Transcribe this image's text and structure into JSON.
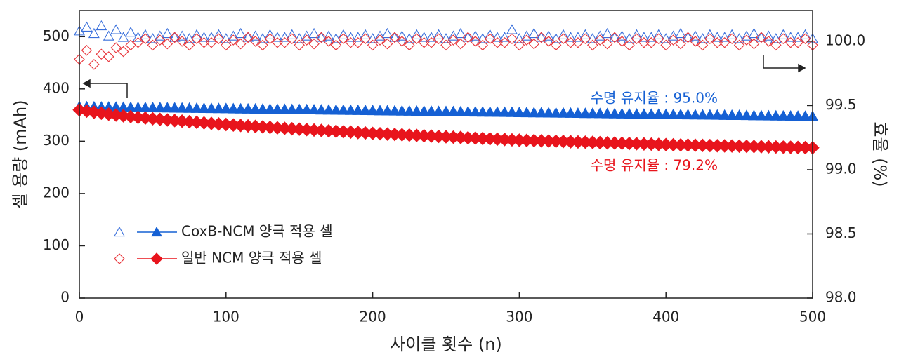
{
  "chart_data": {
    "type": "scatter",
    "x_label": "사이클 횟수 (n)",
    "y_label": "셀 용량 (mAh)",
    "y2_label": "효율 (%)",
    "xlim": [
      0,
      500
    ],
    "xticks": [
      0,
      100,
      200,
      300,
      400,
      500
    ],
    "ylim": [
      0,
      550
    ],
    "yticks": [
      0,
      100,
      200,
      300,
      400,
      500
    ],
    "y2lim": [
      98.0,
      100.24
    ],
    "y2ticks": [
      {
        "value": 98.0,
        "label": "98.0"
      },
      {
        "value": 98.5,
        "label": "98.5"
      },
      {
        "value": 99.0,
        "label": "99.0"
      },
      {
        "value": 99.5,
        "label": "99.5"
      },
      {
        "value": 100.0,
        "label": "100.0"
      }
    ],
    "x": [
      0,
      5,
      10,
      15,
      20,
      25,
      30,
      35,
      40,
      45,
      50,
      55,
      60,
      65,
      70,
      75,
      80,
      85,
      90,
      95,
      100,
      105,
      110,
      115,
      120,
      125,
      130,
      135,
      140,
      145,
      150,
      155,
      160,
      165,
      170,
      175,
      180,
      185,
      190,
      195,
      200,
      205,
      210,
      215,
      220,
      225,
      230,
      235,
      240,
      245,
      250,
      255,
      260,
      265,
      270,
      275,
      280,
      285,
      290,
      295,
      300,
      305,
      310,
      315,
      320,
      325,
      330,
      335,
      340,
      345,
      350,
      355,
      360,
      365,
      370,
      375,
      380,
      385,
      390,
      395,
      400,
      405,
      410,
      415,
      420,
      425,
      430,
      435,
      440,
      445,
      450,
      455,
      460,
      465,
      470,
      475,
      480,
      485,
      490,
      495,
      500
    ],
    "series": [
      {
        "name": "CoxB-NCM 양극 적용 셀",
        "color": "#1560d4",
        "marker": "triangle",
        "open": false,
        "values": [
          366.0,
          365.8,
          365.6,
          365.4,
          365.3,
          365.1,
          364.9,
          364.7,
          364.5,
          364.3,
          364.2,
          364.0,
          363.8,
          363.6,
          363.4,
          363.2,
          363.0,
          362.9,
          362.7,
          362.5,
          362.3,
          362.1,
          361.9,
          361.7,
          361.6,
          361.4,
          361.2,
          361.0,
          360.8,
          360.6,
          360.5,
          360.3,
          360.1,
          359.9,
          359.7,
          359.5,
          359.3,
          359.2,
          359.0,
          358.8,
          358.6,
          358.4,
          358.2,
          358.0,
          357.9,
          357.7,
          357.5,
          357.3,
          357.1,
          356.9,
          356.8,
          356.6,
          356.4,
          356.2,
          356.0,
          355.8,
          355.6,
          355.5,
          355.3,
          355.1,
          354.9,
          354.7,
          354.5,
          354.3,
          354.2,
          354.0,
          353.8,
          353.6,
          353.4,
          353.2,
          353.1,
          352.9,
          352.7,
          352.5,
          352.3,
          352.1,
          351.9,
          351.8,
          351.6,
          351.4,
          351.2,
          351.0,
          350.8,
          350.6,
          350.5,
          350.3,
          350.1,
          349.9,
          349.7,
          349.5,
          349.4,
          349.2,
          349.0,
          348.8,
          348.6,
          348.4,
          348.2,
          348.1,
          347.9,
          347.7,
          347.5
        ]
      },
      {
        "name": "일반 NCM 양극 적용 셀",
        "color": "#e8141c",
        "marker": "diamond",
        "open": false,
        "values": [
          360.0,
          357.6,
          355.5,
          353.6,
          351.8,
          350.1,
          348.5,
          347.0,
          345.6,
          344.3,
          343.0,
          341.8,
          340.6,
          339.5,
          338.4,
          337.3,
          336.2,
          335.1,
          334.0,
          333.0,
          332.0,
          331.0,
          330.1,
          329.2,
          328.3,
          327.4,
          326.5,
          325.6,
          324.7,
          323.8,
          323.0,
          322.2,
          321.4,
          320.6,
          319.8,
          319.0,
          318.2,
          317.4,
          316.6,
          315.8,
          315.0,
          314.3,
          313.7,
          313.0,
          312.4,
          311.7,
          311.1,
          310.4,
          309.8,
          309.1,
          308.5,
          307.8,
          307.2,
          306.5,
          305.9,
          305.2,
          304.6,
          303.9,
          303.3,
          302.6,
          302.0,
          301.6,
          301.2,
          300.7,
          300.3,
          299.9,
          299.5,
          299.0,
          298.6,
          298.2,
          297.8,
          297.3,
          296.9,
          296.5,
          296.1,
          295.6,
          295.2,
          294.8,
          294.4,
          293.9,
          293.5,
          293.2,
          292.9,
          292.6,
          292.3,
          292.0,
          291.7,
          291.4,
          291.1,
          290.8,
          290.5,
          290.2,
          289.9,
          289.6,
          289.3,
          289.0,
          288.7,
          288.4,
          288.1,
          287.8,
          287.5
        ]
      },
      {
        "color": "#3a70dc",
        "marker": "triangle",
        "open": true,
        "axis": "y2",
        "values": [
          100.08,
          100.11,
          100.06,
          100.12,
          100.04,
          100.09,
          100.03,
          100.07,
          100.03,
          100.05,
          100.02,
          100.04,
          100.06,
          100.03,
          100.04,
          100.02,
          100.05,
          100.03,
          100.03,
          100.05,
          100.02,
          100.04,
          100.06,
          100.03,
          100.04,
          100.02,
          100.05,
          100.03,
          100.03,
          100.05,
          100.02,
          100.04,
          100.06,
          100.03,
          100.04,
          100.02,
          100.05,
          100.03,
          100.03,
          100.05,
          100.02,
          100.04,
          100.06,
          100.03,
          100.04,
          100.02,
          100.05,
          100.03,
          100.03,
          100.05,
          100.02,
          100.04,
          100.06,
          100.03,
          100.04,
          100.02,
          100.05,
          100.03,
          100.03,
          100.09,
          100.02,
          100.04,
          100.06,
          100.03,
          100.04,
          100.02,
          100.05,
          100.03,
          100.03,
          100.05,
          100.02,
          100.04,
          100.06,
          100.03,
          100.04,
          100.02,
          100.05,
          100.03,
          100.03,
          100.05,
          100.02,
          100.04,
          100.06,
          100.03,
          100.04,
          100.02,
          100.05,
          100.03,
          100.03,
          100.05,
          100.02,
          100.04,
          100.06,
          100.03,
          100.04,
          100.02,
          100.05,
          100.03,
          100.03,
          100.05,
          100.02
        ]
      },
      {
        "color": "#e8343a",
        "marker": "diamond",
        "open": true,
        "axis": "y2",
        "values": [
          99.86,
          99.93,
          99.82,
          99.9,
          99.88,
          99.95,
          99.92,
          99.97,
          99.99,
          100.02,
          99.97,
          100.01,
          99.98,
          100.03,
          100.0,
          99.97,
          100.02,
          99.99,
          99.99,
          100.02,
          99.97,
          100.01,
          99.98,
          100.03,
          100.0,
          99.97,
          100.02,
          99.99,
          99.99,
          100.02,
          99.97,
          100.01,
          99.98,
          100.03,
          100.0,
          99.97,
          100.02,
          99.99,
          99.99,
          100.02,
          99.97,
          100.01,
          99.98,
          100.03,
          100.0,
          99.97,
          100.02,
          99.99,
          99.99,
          100.02,
          99.97,
          100.01,
          99.98,
          100.03,
          100.0,
          99.97,
          100.02,
          99.99,
          99.99,
          100.02,
          99.97,
          100.01,
          99.98,
          100.03,
          100.0,
          99.97,
          100.02,
          99.99,
          99.99,
          100.02,
          99.97,
          100.01,
          99.98,
          100.03,
          100.0,
          99.97,
          100.02,
          99.99,
          99.99,
          100.02,
          99.97,
          100.01,
          99.98,
          100.03,
          100.0,
          99.97,
          100.02,
          99.99,
          99.99,
          100.02,
          99.97,
          100.01,
          99.98,
          100.03,
          100.0,
          99.97,
          100.02,
          99.99,
          99.99,
          100.02,
          99.97
        ]
      }
    ],
    "annotations": [
      {
        "text": "수명 유지율 : 95.0%",
        "color": "#1560d4"
      },
      {
        "text": "수명 유지율 : 79.2%",
        "color": "#e8141c"
      }
    ]
  }
}
